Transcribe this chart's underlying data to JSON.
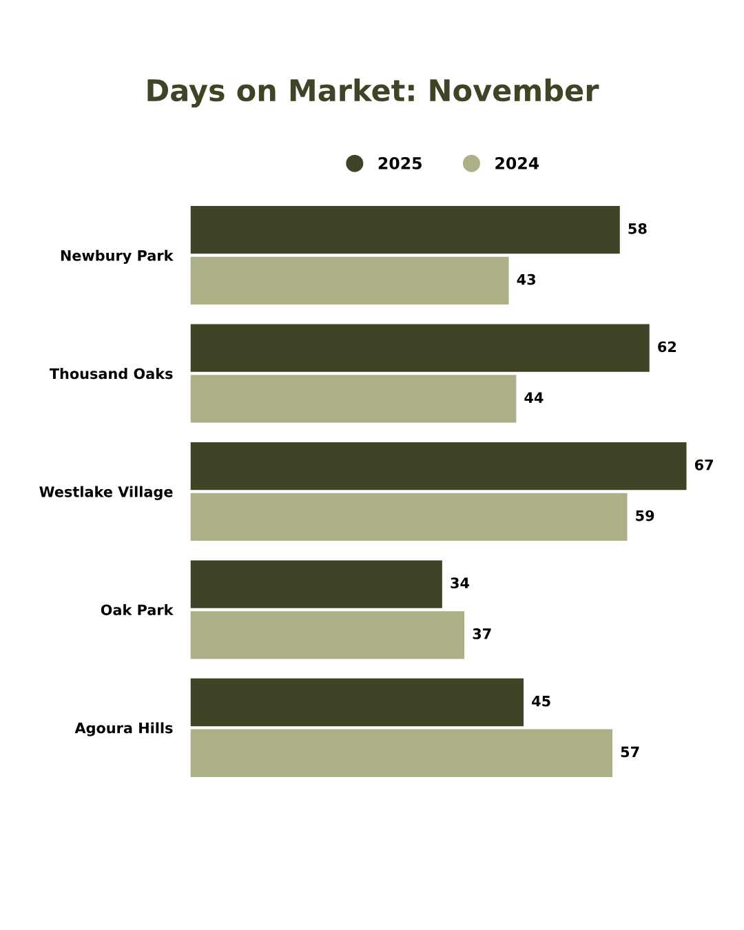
{
  "chart_data": {
    "type": "bar",
    "orientation": "horizontal",
    "title": "Days on Market: November",
    "categories": [
      "Newbury Park",
      "Thousand Oaks",
      "Westlake Village",
      "Oak Park",
      "Agoura Hills"
    ],
    "series": [
      {
        "name": "2025",
        "color": "#3e4527",
        "values": [
          58,
          62,
          67,
          34,
          45
        ]
      },
      {
        "name": "2024",
        "color": "#adaf87",
        "values": [
          43,
          44,
          59,
          37,
          57
        ]
      }
    ],
    "data_labels": true,
    "legend": "top",
    "grid": false,
    "tick_labels": "y"
  }
}
